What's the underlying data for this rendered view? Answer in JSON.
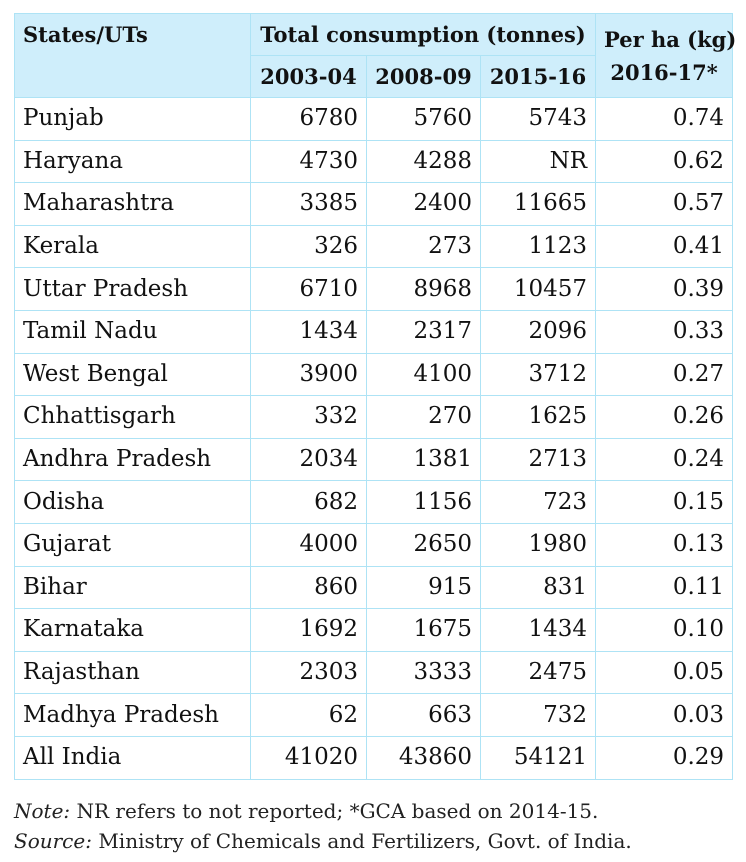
{
  "table": {
    "headers": {
      "state": "States/UTs",
      "total": "Total consumption (tonnes)",
      "per_ha": "Per ha (kg)",
      "years": [
        "2003-04",
        "2008-09",
        "2015-16"
      ],
      "per_ha_year": "2016-17*"
    },
    "rows": [
      [
        "Punjab",
        "6780",
        "5760",
        "5743",
        "0.74"
      ],
      [
        "Haryana",
        "4730",
        "4288",
        "NR",
        "0.62"
      ],
      [
        "Maharashtra",
        "3385",
        "2400",
        "11665",
        "0.57"
      ],
      [
        "Kerala",
        "326",
        "273",
        "1123",
        "0.41"
      ],
      [
        "Uttar Pradesh",
        "6710",
        "8968",
        "10457",
        "0.39"
      ],
      [
        "Tamil Nadu",
        "1434",
        "2317",
        "2096",
        "0.33"
      ],
      [
        "West Bengal",
        "3900",
        "4100",
        "3712",
        "0.27"
      ],
      [
        "Chhattisgarh",
        "332",
        "270",
        "1625",
        "0.26"
      ],
      [
        "Andhra Pradesh",
        "2034",
        "1381",
        "2713",
        "0.24"
      ],
      [
        "Odisha",
        "682",
        "1156",
        "723",
        "0.15"
      ],
      [
        "Gujarat",
        "4000",
        "2650",
        "1980",
        "0.13"
      ],
      [
        "Bihar",
        "860",
        "915",
        "831",
        "0.11"
      ],
      [
        "Karnataka",
        "1692",
        "1675",
        "1434",
        "0.10"
      ],
      [
        "Rajasthan",
        "2303",
        "3333",
        "2475",
        "0.05"
      ],
      [
        "Madhya Pradesh",
        "62",
        "663",
        "732",
        "0.03"
      ],
      [
        "All India",
        "41020",
        "43860",
        "54121",
        "0.29"
      ]
    ]
  },
  "notes": {
    "note_label": "Note:",
    "note_text": " NR refers to not reported; *GCA based on 2014-15.",
    "source_label": "Source:",
    "source_text": " Ministry of Chemicals and Fertilizers, Govt. of India."
  }
}
